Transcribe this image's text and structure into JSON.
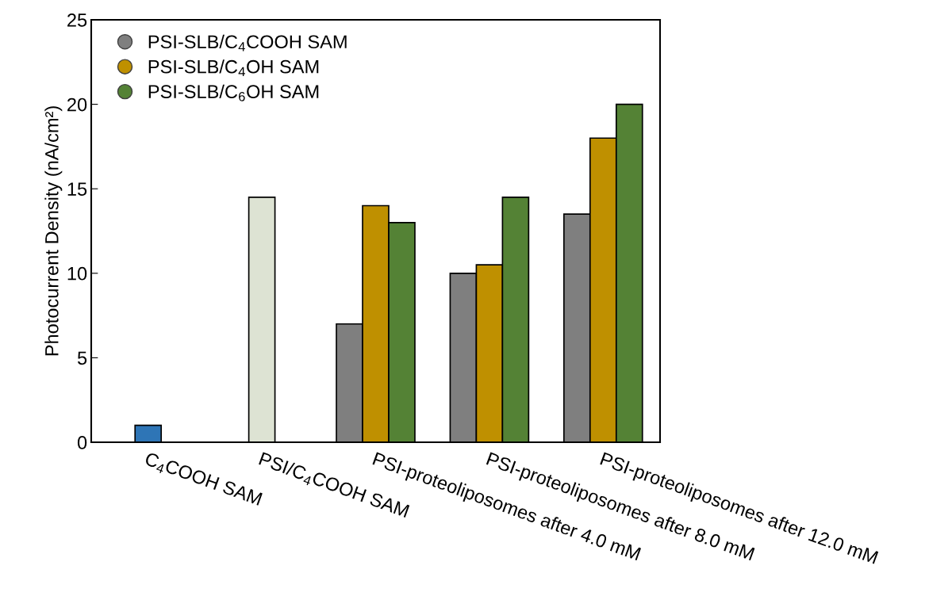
{
  "chart_data": {
    "type": "bar",
    "ylabel": "Photocurrent Density (nA/cm²)",
    "categories": [
      "C$_{4}$COOH SAM",
      "PSI/C$_{4}$COOH SAM",
      "PSI-proteoliposomes after 4.0 mM",
      "PSI-proteoliposomes after 8.0 mM",
      "PSI-proteoliposomes after 12.0 mM"
    ],
    "series": [
      {
        "color": "#2e75b6",
        "values": [
          1,
          null,
          null,
          null,
          null
        ]
      },
      {
        "color": "#dde3d3",
        "values": [
          null,
          14.5,
          null,
          null,
          null
        ]
      },
      {
        "name": "PSI-SLB/C$_{4}$COOH SAM",
        "color": "#7f7f7f",
        "values": [
          null,
          null,
          7,
          10,
          13.5
        ]
      },
      {
        "name": "PSI-SLB/C$_{4}$OH SAM",
        "color": "#bf9000",
        "values": [
          null,
          null,
          14,
          10.5,
          18
        ]
      },
      {
        "name": "PSI-SLB/C$_{6}$OH SAM",
        "color": "#548235",
        "values": [
          null,
          null,
          13,
          14.5,
          20
        ]
      }
    ],
    "ylim": [
      0,
      25
    ],
    "yticks": [
      0,
      5,
      10,
      15,
      20,
      25
    ],
    "grid": false,
    "legend": "top left",
    "marker": "circle"
  }
}
